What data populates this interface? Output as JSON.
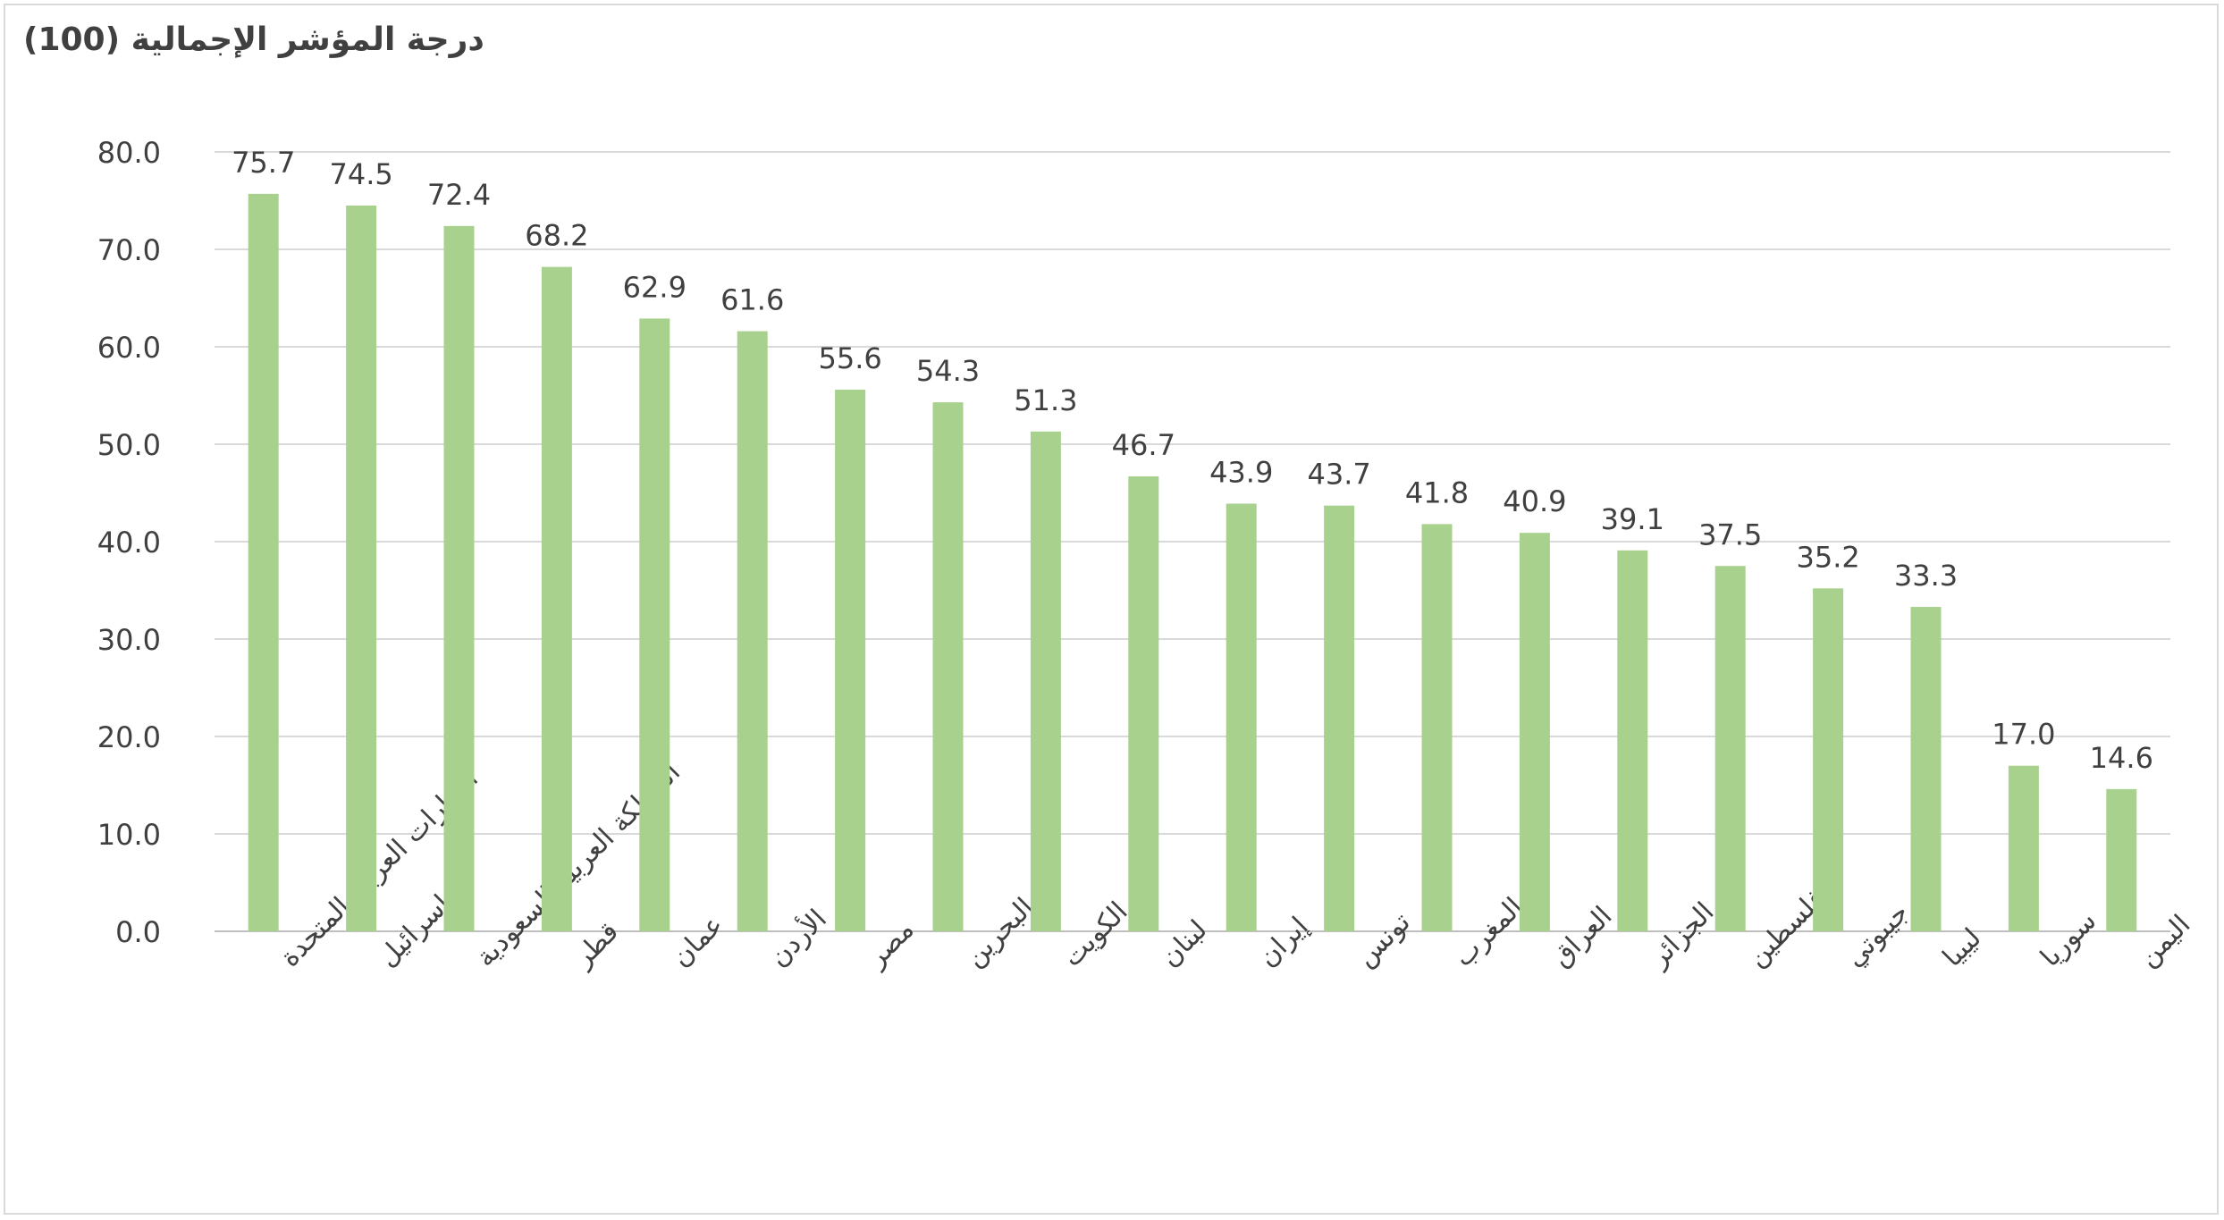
{
  "chart_data": {
    "type": "bar",
    "title": "درجة المؤشر الإجمالية (100)",
    "xlabel": "",
    "ylabel": "",
    "ylim": [
      0,
      80
    ],
    "yticks": [
      "0.0",
      "10.0",
      "20.0",
      "30.0",
      "40.0",
      "50.0",
      "60.0",
      "70.0",
      "80.0"
    ],
    "grid": true,
    "legend": "none",
    "categories": [
      "الإمارات العربية المتحدة",
      "إسرائيل",
      "المملكة العربية السعودية",
      "قطر",
      "عمان",
      "الأردن",
      "مصر",
      "البحرين",
      "الكويت",
      "لبنان",
      "إيران",
      "تونس",
      "المغرب",
      "العراق",
      "الجزائر",
      "فلسطين",
      "جيبوتي",
      "ليبيا",
      "سوريا",
      "اليمن"
    ],
    "values": [
      75.7,
      74.5,
      72.4,
      68.2,
      62.9,
      61.6,
      55.6,
      54.3,
      51.3,
      46.7,
      43.9,
      43.7,
      41.8,
      40.9,
      39.1,
      37.5,
      35.2,
      33.3,
      17.0,
      14.6
    ],
    "value_labels": [
      "75.7",
      "74.5",
      "72.4",
      "68.2",
      "62.9",
      "61.6",
      "55.6",
      "54.3",
      "51.3",
      "46.7",
      "43.9",
      "43.7",
      "41.8",
      "40.9",
      "39.1",
      "37.5",
      "35.2",
      "33.3",
      "17.0",
      "14.6"
    ],
    "colors": {
      "bar": "#a9d18e",
      "grid": "#d9d9d9",
      "axis": "#bfbfbf",
      "text": "#404040"
    }
  }
}
